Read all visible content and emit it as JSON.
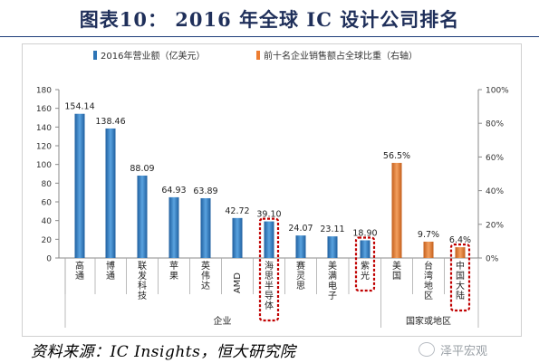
{
  "title": "图表10：  2016 年全球 IC 设计公司排名",
  "source": "资料来源：IC Insights，恒大研究院",
  "watermark": "泽平宏观",
  "chart_data": {
    "type": "bar",
    "legend": [
      {
        "name": "2016年营业额（亿美元）",
        "color": "#2e75b6",
        "axis": "left"
      },
      {
        "name": "前十名企业销售额占全球比重（右轴）",
        "color": "#ed7d31",
        "axis": "right"
      }
    ],
    "legend_position": "top",
    "left_axis": {
      "ylim": [
        0,
        180
      ],
      "ticks": [
        0,
        20,
        40,
        60,
        80,
        100,
        120,
        140,
        160,
        180
      ]
    },
    "right_axis": {
      "ylim": [
        0,
        100
      ],
      "ticks": [
        "0%",
        "20%",
        "40%",
        "60%",
        "80%",
        "100%"
      ]
    },
    "categories": [
      "高通",
      "博通",
      "联发科技",
      "苹果",
      "英伟达",
      "AMD",
      "海思半导体",
      "赛灵思",
      "美满电子",
      "紫光",
      "美国",
      "台湾地区",
      "中国大陆"
    ],
    "series": [
      {
        "name": "2016年营业额（亿美元）",
        "axis": "left",
        "values": [
          154.14,
          138.46,
          88.09,
          64.93,
          63.89,
          42.72,
          39.1,
          24.07,
          23.11,
          18.9,
          null,
          null,
          null
        ],
        "labels": [
          "154.14",
          "138.46",
          "88.09",
          "64.93",
          "63.89",
          "42.72",
          "39.10",
          "24.07",
          "23.11",
          "18.90",
          "",
          "",
          ""
        ]
      },
      {
        "name": "前十名企业销售额占全球比重（右轴）",
        "axis": "right",
        "values": [
          null,
          null,
          null,
          null,
          null,
          null,
          null,
          null,
          null,
          null,
          56.5,
          9.7,
          6.4
        ],
        "labels": [
          "",
          "",
          "",
          "",
          "",
          "",
          "",
          "",
          "",
          "",
          "56.5%",
          "9.7%",
          "6.4%"
        ]
      }
    ],
    "highlighted": [
      "海思半导体",
      "紫光",
      "中国大陆"
    ],
    "groups": [
      {
        "label": "企业",
        "from": 0,
        "to": 9
      },
      {
        "label": "国家或地区",
        "from": 10,
        "to": 12
      }
    ],
    "highlight_color": "#c00000",
    "grid": false
  }
}
